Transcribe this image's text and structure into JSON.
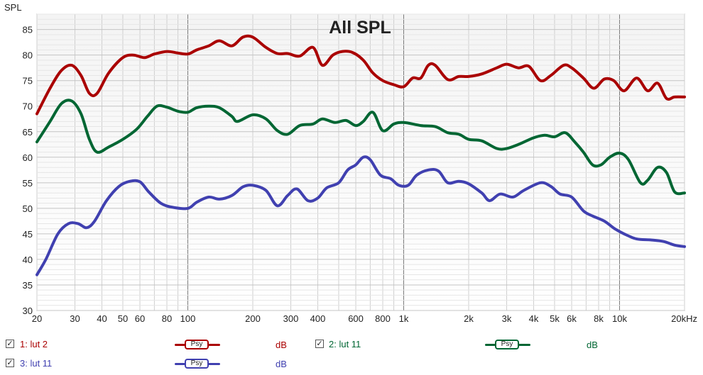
{
  "chart_data": {
    "type": "line",
    "title": "All SPL",
    "ylabel": "SPL",
    "xscale": "log",
    "xlim": [
      20,
      20000
    ],
    "ylim": [
      30,
      88
    ],
    "yticks": [
      30,
      35,
      40,
      45,
      50,
      55,
      60,
      65,
      70,
      75,
      80,
      85
    ],
    "xticks": [
      {
        "v": 20,
        "t": "20"
      },
      {
        "v": 30,
        "t": "30"
      },
      {
        "v": 40,
        "t": "40"
      },
      {
        "v": 50,
        "t": "50"
      },
      {
        "v": 60,
        "t": "60"
      },
      {
        "v": 80,
        "t": "80"
      },
      {
        "v": 100,
        "t": "100"
      },
      {
        "v": 200,
        "t": "200"
      },
      {
        "v": 300,
        "t": "300"
      },
      {
        "v": 400,
        "t": "400"
      },
      {
        "v": 600,
        "t": "600"
      },
      {
        "v": 800,
        "t": "800"
      },
      {
        "v": 1000,
        "t": "1k"
      },
      {
        "v": 2000,
        "t": "2k"
      },
      {
        "v": 3000,
        "t": "3k"
      },
      {
        "v": 4000,
        "t": "4k"
      },
      {
        "v": 5000,
        "t": "5k"
      },
      {
        "v": 6000,
        "t": "6k"
      },
      {
        "v": 8000,
        "t": "8k"
      },
      {
        "v": 10000,
        "t": "10k"
      },
      {
        "v": 20000,
        "t": "20kHz"
      }
    ],
    "grid": true,
    "series": [
      {
        "name": "lut 2",
        "color": "#aa0000",
        "points": [
          [
            20,
            68.5
          ],
          [
            23,
            73.5
          ],
          [
            26,
            77
          ],
          [
            29,
            78
          ],
          [
            32,
            76
          ],
          [
            35,
            72.5
          ],
          [
            38,
            72.5
          ],
          [
            43,
            76.5
          ],
          [
            50,
            79.5
          ],
          [
            56,
            80
          ],
          [
            63,
            79.5
          ],
          [
            70,
            80.2
          ],
          [
            80,
            80.7
          ],
          [
            90,
            80.4
          ],
          [
            100,
            80.2
          ],
          [
            110,
            81
          ],
          [
            125,
            81.8
          ],
          [
            140,
            82.8
          ],
          [
            160,
            81.8
          ],
          [
            180,
            83.5
          ],
          [
            200,
            83.5
          ],
          [
            230,
            81.5
          ],
          [
            260,
            80.3
          ],
          [
            290,
            80.3
          ],
          [
            330,
            79.8
          ],
          [
            380,
            81.5
          ],
          [
            420,
            78
          ],
          [
            470,
            80
          ],
          [
            520,
            80.7
          ],
          [
            580,
            80.5
          ],
          [
            650,
            79
          ],
          [
            720,
            76.5
          ],
          [
            800,
            75
          ],
          [
            900,
            74.2
          ],
          [
            1000,
            73.8
          ],
          [
            1100,
            75.5
          ],
          [
            1200,
            75.5
          ],
          [
            1300,
            78
          ],
          [
            1400,
            78
          ],
          [
            1600,
            75.2
          ],
          [
            1800,
            75.8
          ],
          [
            2000,
            75.8
          ],
          [
            2300,
            76.3
          ],
          [
            2700,
            77.5
          ],
          [
            3000,
            78.2
          ],
          [
            3400,
            77.5
          ],
          [
            3800,
            77.8
          ],
          [
            4300,
            75
          ],
          [
            4800,
            76
          ],
          [
            5500,
            78
          ],
          [
            6000,
            77.5
          ],
          [
            6800,
            75.5
          ],
          [
            7600,
            73.5
          ],
          [
            8500,
            75.3
          ],
          [
            9400,
            75
          ],
          [
            10500,
            73
          ],
          [
            12000,
            75.5
          ],
          [
            13500,
            73
          ],
          [
            15000,
            74.5
          ],
          [
            16500,
            71.5
          ],
          [
            18000,
            71.8
          ],
          [
            20000,
            71.8
          ]
        ]
      },
      {
        "name": "lut 11",
        "color": "#006633",
        "points": [
          [
            20,
            63
          ],
          [
            23,
            67
          ],
          [
            26,
            70.5
          ],
          [
            29,
            71
          ],
          [
            32,
            68.5
          ],
          [
            35,
            63.5
          ],
          [
            38,
            61
          ],
          [
            43,
            62
          ],
          [
            50,
            63.5
          ],
          [
            58,
            65.5
          ],
          [
            65,
            68
          ],
          [
            72,
            70
          ],
          [
            80,
            69.8
          ],
          [
            90,
            69
          ],
          [
            100,
            68.8
          ],
          [
            110,
            69.7
          ],
          [
            125,
            70
          ],
          [
            140,
            69.7
          ],
          [
            160,
            68
          ],
          [
            170,
            67
          ],
          [
            200,
            68.3
          ],
          [
            230,
            67.5
          ],
          [
            260,
            65.2
          ],
          [
            290,
            64.5
          ],
          [
            330,
            66.2
          ],
          [
            380,
            66.5
          ],
          [
            420,
            67.5
          ],
          [
            480,
            66.8
          ],
          [
            540,
            67.2
          ],
          [
            600,
            66.2
          ],
          [
            650,
            67
          ],
          [
            720,
            68.8
          ],
          [
            800,
            65.2
          ],
          [
            900,
            66.5
          ],
          [
            1000,
            66.8
          ],
          [
            1200,
            66.2
          ],
          [
            1400,
            66
          ],
          [
            1600,
            64.8
          ],
          [
            1800,
            64.5
          ],
          [
            2000,
            63.5
          ],
          [
            2300,
            63.2
          ],
          [
            2700,
            61.7
          ],
          [
            3000,
            61.7
          ],
          [
            3400,
            62.5
          ],
          [
            4000,
            63.8
          ],
          [
            4500,
            64.3
          ],
          [
            5000,
            64
          ],
          [
            5600,
            64.8
          ],
          [
            6200,
            63
          ],
          [
            6800,
            61
          ],
          [
            7500,
            58.5
          ],
          [
            8200,
            58.5
          ],
          [
            9000,
            60
          ],
          [
            10000,
            60.8
          ],
          [
            11000,
            59.5
          ],
          [
            12500,
            55
          ],
          [
            13500,
            55.5
          ],
          [
            15000,
            58
          ],
          [
            16500,
            57
          ],
          [
            18000,
            53.2
          ],
          [
            20000,
            53
          ]
        ]
      },
      {
        "name": "lut 11",
        "color": "#4040b0",
        "points": [
          [
            20,
            37
          ],
          [
            22,
            40
          ],
          [
            25,
            45
          ],
          [
            28,
            47
          ],
          [
            31,
            47
          ],
          [
            34,
            46.2
          ],
          [
            37,
            47.5
          ],
          [
            42,
            51.5
          ],
          [
            48,
            54.3
          ],
          [
            54,
            55.3
          ],
          [
            60,
            55.2
          ],
          [
            66,
            53.2
          ],
          [
            75,
            51
          ],
          [
            85,
            50.2
          ],
          [
            100,
            50
          ],
          [
            110,
            51.2
          ],
          [
            125,
            52.2
          ],
          [
            140,
            51.8
          ],
          [
            160,
            52.5
          ],
          [
            180,
            54.2
          ],
          [
            200,
            54.5
          ],
          [
            230,
            53.5
          ],
          [
            260,
            50.5
          ],
          [
            290,
            52.5
          ],
          [
            320,
            53.8
          ],
          [
            360,
            51.5
          ],
          [
            400,
            52
          ],
          [
            440,
            54
          ],
          [
            500,
            55
          ],
          [
            550,
            57.5
          ],
          [
            600,
            58.5
          ],
          [
            650,
            60
          ],
          [
            700,
            59.5
          ],
          [
            780,
            56.5
          ],
          [
            870,
            55.8
          ],
          [
            950,
            54.5
          ],
          [
            1050,
            54.5
          ],
          [
            1150,
            56.5
          ],
          [
            1300,
            57.5
          ],
          [
            1450,
            57.3
          ],
          [
            1600,
            55
          ],
          [
            1800,
            55.3
          ],
          [
            2000,
            54.8
          ],
          [
            2300,
            53
          ],
          [
            2500,
            51.5
          ],
          [
            2800,
            52.8
          ],
          [
            3200,
            52.2
          ],
          [
            3600,
            53.5
          ],
          [
            4300,
            55
          ],
          [
            4800,
            54.3
          ],
          [
            5300,
            52.8
          ],
          [
            6000,
            52.2
          ],
          [
            6800,
            49.5
          ],
          [
            7500,
            48.5
          ],
          [
            8500,
            47.5
          ],
          [
            9500,
            46
          ],
          [
            10500,
            45
          ],
          [
            12000,
            44
          ],
          [
            14000,
            43.8
          ],
          [
            16000,
            43.5
          ],
          [
            18000,
            42.8
          ],
          [
            20000,
            42.5
          ]
        ]
      }
    ]
  },
  "legend": [
    {
      "label": "1: lut 2",
      "button": "Psy",
      "unit": "dB",
      "color": "#aa0000",
      "checked": "✓"
    },
    {
      "label": "2: lut 11",
      "button": "Psy",
      "unit": "dB",
      "color": "#006633",
      "checked": "✓"
    },
    {
      "label": "3: lut 11",
      "button": "Psy",
      "unit": "dB",
      "color": "#4040b0",
      "checked": "✓"
    }
  ]
}
